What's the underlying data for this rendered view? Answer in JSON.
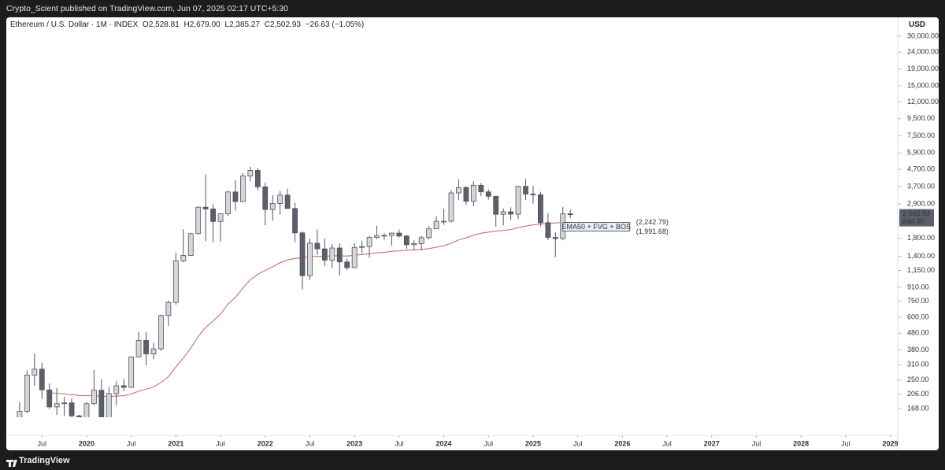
{
  "header": {
    "publisher": "Crypto_Scient published on TradingView.com, Jun 07, 2025 02:17 UTC+5:30",
    "brand": "TradingView"
  },
  "chart_data": {
    "type": "candlestick",
    "title": "Ethereum / U.S. Dollar · 1M · INDEX",
    "ohlc_labels": [
      {
        "key": "O",
        "value": "2,528.81"
      },
      {
        "key": "H",
        "value": "2,679.00"
      },
      {
        "key": "L",
        "value": "2,385.27"
      },
      {
        "key": "C",
        "value": "2,502.93"
      }
    ],
    "change": "−26.63 (−1.05%)",
    "currency": "USD",
    "log_scale": true,
    "grid": false,
    "up_color": "#d4d6dc",
    "down_color": "#5d606b",
    "border_color": "#50535e",
    "x": [
      "2019-04",
      "2019-05",
      "2019-06",
      "2019-07",
      "2019-08",
      "2019-09",
      "2019-10",
      "2019-11",
      "2019-12",
      "2020-01",
      "2020-02",
      "2020-03",
      "2020-04",
      "2020-05",
      "2020-06",
      "2020-07",
      "2020-08",
      "2020-09",
      "2020-10",
      "2020-11",
      "2020-12",
      "2021-01",
      "2021-02",
      "2021-03",
      "2021-04",
      "2021-05",
      "2021-06",
      "2021-07",
      "2021-08",
      "2021-09",
      "2021-10",
      "2021-11",
      "2021-12",
      "2022-01",
      "2022-02",
      "2022-03",
      "2022-04",
      "2022-05",
      "2022-06",
      "2022-07",
      "2022-08",
      "2022-09",
      "2022-10",
      "2022-11",
      "2022-12",
      "2023-01",
      "2023-02",
      "2023-03",
      "2023-04",
      "2023-05",
      "2023-06",
      "2023-07",
      "2023-08",
      "2023-09",
      "2023-10",
      "2023-11",
      "2023-12",
      "2024-01",
      "2024-02",
      "2024-03",
      "2024-04",
      "2024-05",
      "2024-06",
      "2024-07",
      "2024-08",
      "2024-09",
      "2024-10",
      "2024-11",
      "2024-12",
      "2025-01",
      "2025-02",
      "2025-03",
      "2025-04",
      "2025-05",
      "2025-06"
    ],
    "open": [
      141,
      162,
      268,
      291,
      218,
      172,
      180,
      182,
      152,
      130,
      180,
      217,
      133,
      207,
      231,
      226,
      345,
      434,
      360,
      386,
      614,
      737,
      1315,
      1417,
      1919,
      2774,
      2707,
      2275,
      2535,
      3431,
      3001,
      4288,
      4630,
      3683,
      2688,
      2919,
      3282,
      2726,
      1941,
      1070,
      1679,
      1553,
      1328,
      1572,
      1295,
      1196,
      1585,
      1605,
      1822,
      1869,
      1874,
      1934,
      1857,
      1645,
      1671,
      1815,
      2052,
      2282,
      2283,
      3384,
      3646,
      3015,
      3763,
      3433,
      3230,
      2514,
      2603,
      2519,
      3705,
      3332,
      3300,
      2237,
      1822,
      1793,
      2528.81
    ],
    "high": [
      184,
      287,
      362,
      318,
      239,
      224,
      198,
      194,
      154,
      184,
      288,
      253,
      227,
      246,
      254,
      348,
      488,
      489,
      419,
      623,
      755,
      1475,
      2041,
      1943,
      2797,
      4380,
      2892,
      2552,
      3470,
      4028,
      4460,
      4868,
      4779,
      3900,
      3282,
      3480,
      3581,
      2955,
      1976,
      1788,
      2030,
      1788,
      1663,
      1676,
      1352,
      1680,
      1743,
      1860,
      2141,
      1929,
      1950,
      2029,
      1880,
      1750,
      1865,
      2138,
      2445,
      2717,
      3523,
      4094,
      3730,
      3977,
      3887,
      3563,
      3250,
      2728,
      2770,
      3740,
      4108,
      3745,
      3440,
      2550,
      1955,
      2788,
      2679
    ],
    "low": [
      137,
      158,
      231,
      192,
      167,
      154,
      152,
      139,
      116,
      125,
      176,
      86,
      130,
      176,
      214,
      223,
      343,
      308,
      334,
      376,
      532,
      714,
      1290,
      1416,
      1908,
      1730,
      1703,
      1718,
      2452,
      2650,
      2980,
      3975,
      3504,
      2159,
      2300,
      2506,
      2715,
      1705,
      881,
      1008,
      1424,
      1220,
      1190,
      1073,
      1160,
      1190,
      1460,
      1370,
      1780,
      1760,
      1626,
      1820,
      1550,
      1530,
      1522,
      1770,
      2045,
      2166,
      2242,
      3057,
      2860,
      2816,
      3238,
      3085,
      2115,
      2150,
      2311,
      2358,
      3060,
      2918,
      2120,
      1753,
      1385,
      1750,
      2385.27
    ],
    "close": [
      162,
      268,
      291,
      218,
      172,
      180,
      182,
      152,
      130,
      180,
      217,
      133,
      207,
      231,
      226,
      345,
      434,
      360,
      386,
      614,
      737,
      1315,
      1417,
      1919,
      2774,
      2707,
      2275,
      2535,
      3431,
      3001,
      4288,
      4630,
      3683,
      2688,
      2919,
      3282,
      2726,
      1941,
      1070,
      1679,
      1553,
      1328,
      1572,
      1295,
      1196,
      1585,
      1605,
      1822,
      1869,
      1874,
      1934,
      1857,
      1645,
      1671,
      1815,
      2052,
      2282,
      2283,
      3384,
      3646,
      3015,
      3763,
      3433,
      3230,
      2514,
      2603,
      2519,
      3705,
      3332,
      3300,
      2237,
      1822,
      1793,
      2528,
      2502.93
    ],
    "ema": {
      "color": "#c8625f",
      "x": [
        "2019-08",
        "2019-09",
        "2019-10",
        "2019-11",
        "2019-12",
        "2020-01",
        "2020-02",
        "2020-03",
        "2020-04",
        "2020-05",
        "2020-06",
        "2020-07",
        "2020-08",
        "2020-09",
        "2020-10",
        "2020-11",
        "2020-12",
        "2021-01",
        "2021-02",
        "2021-03",
        "2021-04",
        "2021-05",
        "2021-06",
        "2021-07",
        "2021-08",
        "2021-09",
        "2021-10",
        "2021-11",
        "2021-12",
        "2022-01",
        "2022-02",
        "2022-03",
        "2022-04",
        "2022-05",
        "2022-06",
        "2022-07",
        "2022-08",
        "2022-09",
        "2022-10",
        "2022-11",
        "2022-12",
        "2023-01",
        "2023-02",
        "2023-03",
        "2023-04",
        "2023-05",
        "2023-06",
        "2023-07",
        "2023-08",
        "2023-09",
        "2023-10",
        "2023-11",
        "2023-12",
        "2024-01",
        "2024-02",
        "2024-03",
        "2024-04",
        "2024-05",
        "2024-06",
        "2024-07",
        "2024-08",
        "2024-09",
        "2024-10",
        "2024-11",
        "2024-12",
        "2025-01",
        "2025-02",
        "2025-03",
        "2025-04",
        "2025-05",
        "2025-06"
      ],
      "values": [
        210,
        208,
        206,
        204,
        202,
        201,
        201,
        199,
        199,
        200,
        201,
        206,
        214,
        220,
        227,
        242,
        262,
        300,
        340,
        390,
        460,
        520,
        570,
        625,
        720,
        790,
        900,
        1010,
        1090,
        1150,
        1210,
        1280,
        1330,
        1360,
        1370,
        1395,
        1400,
        1400,
        1410,
        1410,
        1405,
        1420,
        1435,
        1450,
        1470,
        1480,
        1500,
        1510,
        1520,
        1530,
        1540,
        1560,
        1590,
        1620,
        1680,
        1760,
        1810,
        1880,
        1930,
        1960,
        1990,
        2010,
        2030,
        2090,
        2130,
        2170,
        2200,
        2205,
        2230,
        2242.79,
        2242.79
      ]
    },
    "annotation": {
      "text": "EMA50 + FVG + BOS",
      "top": 2242.79,
      "bottom": 1991.68,
      "top_label": "(2,242.79)",
      "bottom_label": "(1,991.68)",
      "x0": "2025-05",
      "x1": "2026-02"
    },
    "last_price": {
      "value": 2502.93,
      "label": "2,502.93",
      "countdown": "24d 4h"
    },
    "xlim": [
      "2019-02",
      "2029-02"
    ],
    "ylim": [
      149,
      39000
    ],
    "xticks": [
      {
        "value": "2019-07",
        "label": "Jul"
      },
      {
        "value": "2020-01",
        "label": "2020"
      },
      {
        "value": "2020-07",
        "label": "Jul"
      },
      {
        "value": "2021-01",
        "label": "2021"
      },
      {
        "value": "2021-07",
        "label": "Jul"
      },
      {
        "value": "2022-01",
        "label": "2022"
      },
      {
        "value": "2022-07",
        "label": "Jul"
      },
      {
        "value": "2023-01",
        "label": "2023"
      },
      {
        "value": "2023-07",
        "label": "Jul"
      },
      {
        "value": "2024-01",
        "label": "2024"
      },
      {
        "value": "2024-07",
        "label": "Jul"
      },
      {
        "value": "2025-01",
        "label": "2025"
      },
      {
        "value": "2025-07",
        "label": "Jul"
      },
      {
        "value": "2026-01",
        "label": "2026"
      },
      {
        "value": "2026-07",
        "label": "Jul"
      },
      {
        "value": "2027-01",
        "label": "2027"
      },
      {
        "value": "2027-07",
        "label": "Jul"
      },
      {
        "value": "2028-01",
        "label": "2028"
      },
      {
        "value": "2028-07",
        "label": "Jul"
      },
      {
        "value": "2029-01",
        "label": "2029"
      }
    ],
    "yticks": [
      {
        "value": 30000,
        "label": "30,000.00"
      },
      {
        "value": 24000,
        "label": "24,000.00"
      },
      {
        "value": 19000,
        "label": "19,000.00"
      },
      {
        "value": 15000,
        "label": "15,000.00"
      },
      {
        "value": 12000,
        "label": "12,000.00"
      },
      {
        "value": 9500,
        "label": "9,500.00"
      },
      {
        "value": 7500,
        "label": "7,500.00"
      },
      {
        "value": 5900,
        "label": "5,900.00"
      },
      {
        "value": 4700,
        "label": "4,700.00"
      },
      {
        "value": 3700,
        "label": "3,700.00"
      },
      {
        "value": 2900,
        "label": "2,900.00"
      },
      {
        "value": 1800,
        "label": "1,800.00"
      },
      {
        "value": 1400,
        "label": "1,400.00"
      },
      {
        "value": 1150,
        "label": "1,150.00"
      },
      {
        "value": 910,
        "label": "910.00"
      },
      {
        "value": 750,
        "label": "750.00"
      },
      {
        "value": 600,
        "label": "600.00"
      },
      {
        "value": 480,
        "label": "480.00"
      },
      {
        "value": 380,
        "label": "380.00"
      },
      {
        "value": 310,
        "label": "310.00"
      },
      {
        "value": 250,
        "label": "250.00"
      },
      {
        "value": 206,
        "label": "206.00"
      },
      {
        "value": 168,
        "label": "168.00"
      }
    ]
  }
}
